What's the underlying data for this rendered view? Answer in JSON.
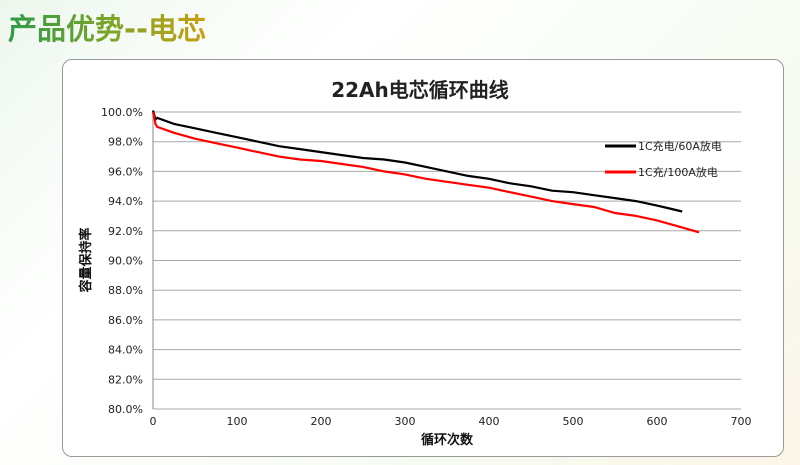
{
  "slide_title": "产品优势--电芯",
  "chart_data": {
    "type": "line",
    "title": "22Ah电芯循环曲线",
    "xlabel": "循环次数",
    "ylabel": "容量保持率",
    "xlim": [
      0,
      700
    ],
    "ylim": [
      80,
      100
    ],
    "xticks": [
      0,
      100,
      200,
      300,
      400,
      500,
      600,
      700
    ],
    "yticks": [
      "80.0%",
      "82.0%",
      "84.0%",
      "86.0%",
      "88.0%",
      "90.0%",
      "92.0%",
      "94.0%",
      "96.0%",
      "98.0%",
      "100.0%"
    ],
    "grid": "horizontal",
    "legend": "right",
    "series": [
      {
        "name": "1C充电/60A放电",
        "color": "#000000",
        "x": [
          0,
          3,
          5,
          25,
          50,
          75,
          100,
          125,
          150,
          175,
          200,
          225,
          250,
          275,
          300,
          325,
          350,
          375,
          400,
          425,
          450,
          475,
          500,
          525,
          550,
          575,
          600,
          615,
          630
        ],
        "y": [
          100.1,
          99.5,
          99.6,
          99.2,
          98.9,
          98.6,
          98.3,
          98.0,
          97.7,
          97.5,
          97.3,
          97.1,
          96.9,
          96.8,
          96.6,
          96.3,
          96.0,
          95.7,
          95.5,
          95.2,
          95.0,
          94.7,
          94.6,
          94.4,
          94.2,
          94.0,
          93.7,
          93.5,
          93.3
        ]
      },
      {
        "name": "1C充/100A放电",
        "color": "#ff0000",
        "x": [
          0,
          3,
          5,
          25,
          50,
          75,
          100,
          125,
          150,
          175,
          200,
          225,
          250,
          275,
          300,
          325,
          350,
          375,
          400,
          425,
          450,
          475,
          500,
          525,
          550,
          575,
          600,
          625,
          650
        ],
        "y": [
          100.0,
          99.2,
          99.0,
          98.6,
          98.2,
          97.9,
          97.6,
          97.3,
          97.0,
          96.8,
          96.7,
          96.5,
          96.3,
          96.0,
          95.8,
          95.5,
          95.3,
          95.1,
          94.9,
          94.6,
          94.3,
          94.0,
          93.8,
          93.6,
          93.2,
          93.0,
          92.7,
          92.3,
          91.9
        ]
      }
    ]
  }
}
